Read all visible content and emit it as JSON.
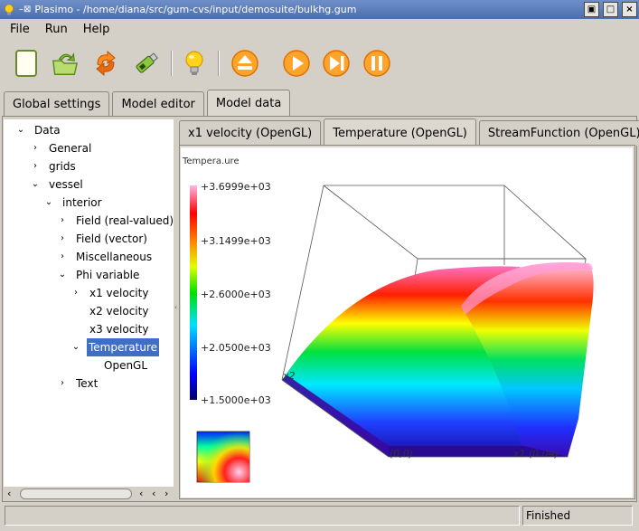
{
  "window": {
    "title": "Plasimo - /home/diana/src/gum-cvs/input/demosuite/bulkhg.gum",
    "controls": [
      "▣",
      "□",
      "×"
    ]
  },
  "menu": {
    "items": [
      "File",
      "Run",
      "Help"
    ]
  },
  "toolbar": {
    "tools": [
      "new-document-icon",
      "open-recycle-icon",
      "reload-icon",
      "usb-stick-icon",
      "lightbulb-icon",
      "eject-icon",
      "play-icon",
      "step-forward-icon",
      "pause-icon"
    ]
  },
  "main_tabs": [
    {
      "label": "Global settings",
      "active": false
    },
    {
      "label": "Model editor",
      "active": false
    },
    {
      "label": "Model data",
      "active": true
    }
  ],
  "tree": [
    {
      "label": "Data",
      "level": 0,
      "state": "expanded"
    },
    {
      "label": "General",
      "level": 1,
      "state": "collapsed"
    },
    {
      "label": "grids",
      "level": 1,
      "state": "collapsed"
    },
    {
      "label": "vessel",
      "level": 1,
      "state": "expanded"
    },
    {
      "label": "interior",
      "level": 2,
      "state": "expanded"
    },
    {
      "label": "Field (real-valued)",
      "level": 3,
      "state": "collapsed"
    },
    {
      "label": "Field (vector)",
      "level": 3,
      "state": "collapsed"
    },
    {
      "label": "Miscellaneous",
      "level": 3,
      "state": "collapsed"
    },
    {
      "label": "Phi variable",
      "level": 3,
      "state": "expanded"
    },
    {
      "label": "x1 velocity",
      "level": 4,
      "state": "collapsed"
    },
    {
      "label": "x2 velocity",
      "level": 4,
      "state": "leaf"
    },
    {
      "label": "x3 velocity",
      "level": 4,
      "state": "leaf"
    },
    {
      "label": "Temperature",
      "level": 4,
      "state": "expanded",
      "selected": true
    },
    {
      "label": "OpenGL",
      "level": 5,
      "state": "leaf"
    },
    {
      "label": "Text",
      "level": 3,
      "state": "collapsed"
    }
  ],
  "view_tabs": [
    {
      "label": "x1 velocity (OpenGL)",
      "active": false
    },
    {
      "label": "Temperature (OpenGL)",
      "active": true
    },
    {
      "label": "StreamFunction (OpenGL)",
      "active": false
    }
  ],
  "plot": {
    "title": "Tempera.ure",
    "colorbar_labels": [
      "+3.6999e+03",
      "+3.1499e+03",
      "+2.6000e+03",
      "+2.0500e+03",
      "+1.5000e+03"
    ],
    "axis_labels": {
      "x2": "x2",
      "origin": "(0,0)",
      "x1": "x1  (0.04)"
    }
  },
  "status": {
    "left": "",
    "right": "Finished"
  }
}
